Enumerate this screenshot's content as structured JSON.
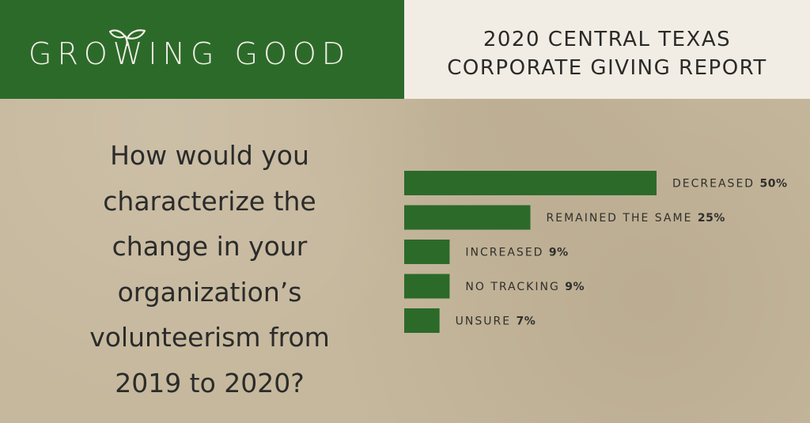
{
  "header": {
    "brand": "GROWING GOOD",
    "logo_icon": "sprout-leaves-icon",
    "report_title_line1": "2020 CENTRAL TEXAS",
    "report_title_line2": "CORPORATE GIVING REPORT",
    "brand_color": "#2c6a2a"
  },
  "question": {
    "lines": [
      "How would you",
      "characterize the",
      "change in your",
      "organization’s",
      "volunteerism from",
      "2019 to 2020?"
    ]
  },
  "chart_data": {
    "type": "bar",
    "orientation": "horizontal",
    "categories": [
      "DECREASED",
      "REMAINED THE SAME",
      "INCREASED",
      "NO TRACKING",
      "UNSURE"
    ],
    "values": [
      50,
      25,
      9,
      9,
      7
    ],
    "value_labels": [
      "50%",
      "25%",
      "9%",
      "9%",
      "7%"
    ],
    "unit": "%",
    "xlim": [
      0,
      50
    ],
    "bar_color": "#2c6a2a",
    "grid": false,
    "legend": "none",
    "title": "",
    "xlabel": "",
    "ylabel": ""
  }
}
